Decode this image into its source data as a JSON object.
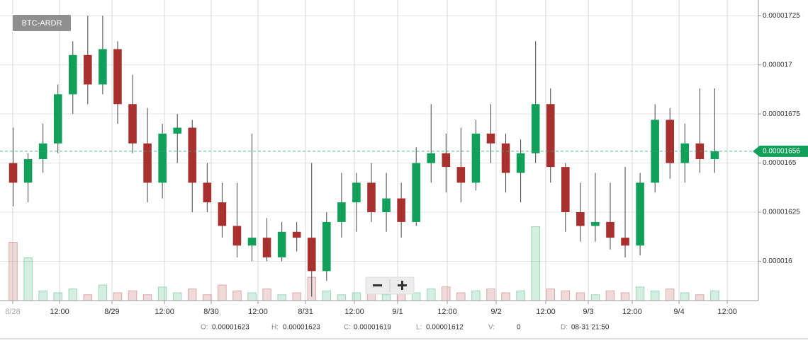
{
  "chart_data": {
    "type": "candlestick",
    "title": "BTC-ARDR",
    "x": [
      0,
      1,
      2,
      3,
      4,
      5,
      6,
      7,
      8,
      9,
      10,
      11,
      12,
      13,
      14,
      15,
      16,
      17,
      18,
      19,
      20,
      21,
      22,
      23,
      24,
      25,
      26,
      27,
      28,
      29,
      30,
      31,
      32,
      33,
      34,
      35,
      36,
      37,
      38,
      39,
      40,
      41,
      42,
      43,
      44,
      45,
      46,
      47
    ],
    "open": [
      1.65e-05,
      1.64e-05,
      1.652e-05,
      1.66e-05,
      1.685e-05,
      1.705e-05,
      1.69e-05,
      1.708e-05,
      1.68e-05,
      1.66e-05,
      1.64e-05,
      1.665e-05,
      1.668e-05,
      1.64e-05,
      1.63e-05,
      1.618e-05,
      1.608e-05,
      1.612e-05,
      1.602e-05,
      1.615e-05,
      1.612e-05,
      1.595e-05,
      1.62e-05,
      1.63e-05,
      1.64e-05,
      1.625e-05,
      1.632e-05,
      1.62e-05,
      1.65e-05,
      1.655e-05,
      1.648e-05,
      1.64e-05,
      1.665e-05,
      1.66e-05,
      1.645e-05,
      1.655e-05,
      1.68e-05,
      1.648e-05,
      1.625e-05,
      1.618e-05,
      1.62e-05,
      1.612e-05,
      1.608e-05,
      1.64e-05,
      1.672e-05,
      1.65e-05,
      1.66e-05,
      1.652e-05
    ],
    "high": [
      1.668e-05,
      1.655e-05,
      1.67e-05,
      1.69e-05,
      1.712e-05,
      1.725e-05,
      1.725e-05,
      1.712e-05,
      1.695e-05,
      1.678e-05,
      1.67e-05,
      1.675e-05,
      1.672e-05,
      1.65e-05,
      1.64e-05,
      1.64e-05,
      1.665e-05,
      1.622e-05,
      1.62e-05,
      1.62e-05,
      1.65e-05,
      1.625e-05,
      1.645e-05,
      1.645e-05,
      1.65e-05,
      1.645e-05,
      1.64e-05,
      1.658e-05,
      1.68e-05,
      1.665e-05,
      1.668e-05,
      1.672e-05,
      1.68e-05,
      1.665e-05,
      1.662e-05,
      1.712e-05,
      1.688e-05,
      1.65e-05,
      1.64e-05,
      1.645e-05,
      1.64e-05,
      1.648e-05,
      1.645e-05,
      1.68e-05,
      1.678e-05,
      1.67e-05,
      1.688e-05,
      1.688e-05
    ],
    "low": [
      1.628e-05,
      1.63e-05,
      1.645e-05,
      1.655e-05,
      1.675e-05,
      1.68e-05,
      1.685e-05,
      1.67e-05,
      1.655e-05,
      1.63e-05,
      1.632e-05,
      1.65e-05,
      1.625e-05,
      1.625e-05,
      1.612e-05,
      1.602e-05,
      1.6e-05,
      1.6e-05,
      1.6e-05,
      1.605e-05,
      1.582e-05,
      1.59e-05,
      1.612e-05,
      1.615e-05,
      1.62e-05,
      1.615e-05,
      1.612e-05,
      1.618e-05,
      1.64e-05,
      1.635e-05,
      1.63e-05,
      1.636e-05,
      1.65e-05,
      1.635e-05,
      1.63e-05,
      1.65e-05,
      1.64e-05,
      1.615e-05,
      1.61e-05,
      1.61e-05,
      1.606e-05,
      1.602e-05,
      1.603e-05,
      1.635e-05,
      1.642e-05,
      1.64e-05,
      1.645e-05,
      1.645e-05
    ],
    "close": [
      1.64e-05,
      1.652e-05,
      1.66e-05,
      1.685e-05,
      1.705e-05,
      1.69e-05,
      1.708e-05,
      1.68e-05,
      1.66e-05,
      1.64e-05,
      1.665e-05,
      1.668e-05,
      1.64e-05,
      1.63e-05,
      1.618e-05,
      1.608e-05,
      1.612e-05,
      1.602e-05,
      1.615e-05,
      1.612e-05,
      1.595e-05,
      1.62e-05,
      1.63e-05,
      1.64e-05,
      1.625e-05,
      1.632e-05,
      1.62e-05,
      1.65e-05,
      1.655e-05,
      1.648e-05,
      1.64e-05,
      1.665e-05,
      1.66e-05,
      1.645e-05,
      1.655e-05,
      1.68e-05,
      1.648e-05,
      1.625e-05,
      1.618e-05,
      1.62e-05,
      1.612e-05,
      1.608e-05,
      1.64e-05,
      1.672e-05,
      1.65e-05,
      1.66e-05,
      1.652e-05,
      1.656e-05
    ],
    "volume": [
      30,
      22,
      5,
      4,
      6,
      3,
      8,
      4,
      5,
      3,
      7,
      4,
      6,
      3,
      8,
      5,
      4,
      6,
      3,
      4,
      12,
      5,
      3,
      4,
      6,
      3,
      5,
      4,
      6,
      7,
      4,
      5,
      6,
      4,
      5,
      38,
      6,
      5,
      4,
      3,
      5,
      4,
      7,
      5,
      6,
      4,
      3,
      5
    ],
    "volume_lim": [
      0,
      40
    ],
    "up_color": "#11a05a",
    "down_color": "#a8302f",
    "xlim": [
      -0.5,
      48.5
    ],
    "xticks": [
      {
        "value": -0.03,
        "label": "8/28"
      },
      {
        "value": 3.11,
        "label": "12:00"
      },
      {
        "value": 6.62,
        "label": "8/29"
      },
      {
        "value": 10.14,
        "label": "12:00"
      },
      {
        "value": 13.27,
        "label": "8/30"
      },
      {
        "value": 16.4,
        "label": "12:00"
      },
      {
        "value": 19.59,
        "label": "8/31"
      },
      {
        "value": 22.86,
        "label": "12:00"
      },
      {
        "value": 25.76,
        "label": "9/1"
      },
      {
        "value": 29.08,
        "label": "12:00"
      },
      {
        "value": 32.36,
        "label": "9/2"
      },
      {
        "value": 35.68,
        "label": "12:00"
      },
      {
        "value": 38.53,
        "label": "9/3"
      },
      {
        "value": 41.47,
        "label": "12:00"
      },
      {
        "value": 44.61,
        "label": "9/4"
      },
      {
        "value": 47.84,
        "label": "12:00"
      }
    ],
    "ylim": [
      1.58e-05,
      1.733e-05
    ],
    "yticks": [
      1.6e-05,
      1.625e-05,
      1.65e-05,
      1.675e-05,
      1.7e-05,
      1.725e-05
    ],
    "last_price": 1.656e-05,
    "grid": true
  },
  "info": [
    {
      "label": "O:",
      "value": 1.623e-05
    },
    {
      "label": "H:",
      "value": 1.623e-05
    },
    {
      "label": "C:",
      "value": 1.619e-05
    },
    {
      "label": "L:",
      "value": 1.612e-05
    },
    {
      "label": "V:",
      "value": 0
    },
    {
      "label": "D:",
      "value": "08-31 21:50"
    }
  ]
}
